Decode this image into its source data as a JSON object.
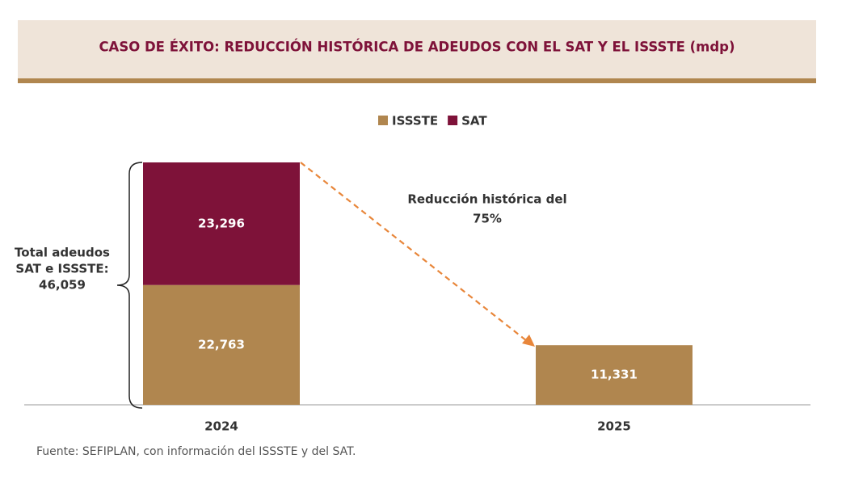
{
  "chart_data": {
    "type": "stacked-bar",
    "title": "CASO DE ÉXITO: REDUCCIÓN HISTÓRICA DE ADEUDOS CON EL SAT Y EL ISSSTE (mdp)",
    "categories": [
      "2024",
      "2025"
    ],
    "series": [
      {
        "name": "ISSSTE",
        "color": "#b0864f",
        "values": [
          22763,
          11331
        ],
        "value_labels": [
          "22,763",
          "11,331"
        ]
      },
      {
        "name": "SAT",
        "color": "#7e1239",
        "values": [
          23296,
          null
        ],
        "value_labels": [
          "23,296",
          null
        ]
      }
    ],
    "annotations": [
      {
        "lines": [
          "Total adeudos",
          "SAT e ISSSTE:",
          "46,059"
        ]
      },
      {
        "lines": [
          "Reducción histórica del",
          "75%"
        ]
      }
    ],
    "source": "Fuente: SEFIPLAN, con información del ISSSTE y del SAT."
  }
}
